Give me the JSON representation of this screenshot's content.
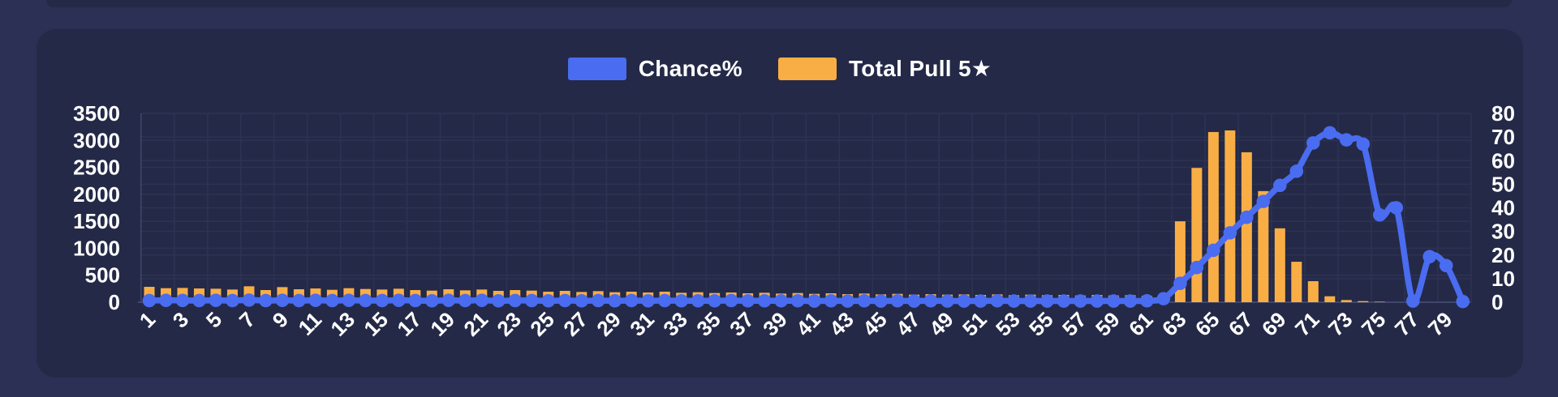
{
  "colors": {
    "page_background": "#2b3054",
    "card_background": "#242947",
    "grid_line": "#2d3253",
    "axis_line": "#41466b",
    "text": "#ffffff",
    "chance_blue": "#4a6cf0",
    "pull_orange": "#f9ae45"
  },
  "chart_data": {
    "type": "bar+line combo",
    "title": "",
    "legend_position": "top",
    "grid": "both axes, subtle",
    "x": [
      1,
      2,
      3,
      4,
      5,
      6,
      7,
      8,
      9,
      10,
      11,
      12,
      13,
      14,
      15,
      16,
      17,
      18,
      19,
      20,
      21,
      22,
      23,
      24,
      25,
      26,
      27,
      28,
      29,
      30,
      31,
      32,
      33,
      34,
      35,
      36,
      37,
      38,
      39,
      40,
      41,
      42,
      43,
      44,
      45,
      46,
      47,
      48,
      49,
      50,
      51,
      52,
      53,
      54,
      55,
      56,
      57,
      58,
      59,
      60,
      61,
      62,
      63,
      64,
      65,
      66,
      67,
      68,
      69,
      70,
      71,
      72,
      73,
      74,
      75,
      76,
      77,
      78,
      79,
      80
    ],
    "x_axis": {
      "tick_labels": [
        "1",
        "3",
        "5",
        "7",
        "9",
        "11",
        "13",
        "15",
        "17",
        "19",
        "21",
        "23",
        "25",
        "27",
        "29",
        "31",
        "33",
        "35",
        "37",
        "39",
        "41",
        "43",
        "45",
        "47",
        "49",
        "51",
        "53",
        "55",
        "57",
        "59",
        "61",
        "63",
        "65",
        "67",
        "69",
        "71",
        "73",
        "75",
        "77",
        "79"
      ],
      "label_rotation_deg": -45
    },
    "left_axis": {
      "min": 0,
      "max": 3500,
      "step": 500,
      "tick_labels": [
        "0",
        "500",
        "1000",
        "1500",
        "2000",
        "2500",
        "3000",
        "3500"
      ]
    },
    "right_axis": {
      "min": 0,
      "max": 80,
      "step": 10,
      "tick_labels": [
        "0",
        "10",
        "20",
        "30",
        "40",
        "50",
        "60",
        "70",
        "80"
      ]
    },
    "series": [
      {
        "name": "Chance%",
        "type": "line",
        "axis": "right",
        "color": "#4a6cf0",
        "values": [
          0.7,
          0.8,
          0.75,
          0.7,
          0.8,
          0.7,
          0.9,
          0.7,
          0.8,
          0.7,
          0.8,
          0.7,
          0.8,
          0.7,
          0.7,
          0.8,
          0.7,
          0.6,
          0.8,
          0.7,
          0.8,
          0.6,
          0.7,
          0.7,
          0.6,
          0.7,
          0.6,
          0.7,
          0.6,
          0.7,
          0.6,
          0.7,
          0.6,
          0.6,
          0.6,
          0.7,
          0.6,
          0.6,
          0.6,
          0.6,
          0.5,
          0.6,
          0.5,
          0.6,
          0.5,
          0.6,
          0.5,
          0.6,
          0.5,
          0.5,
          0.5,
          0.6,
          0.5,
          0.5,
          0.5,
          0.5,
          0.5,
          0.5,
          0.5,
          0.5,
          0.6,
          1.5,
          8,
          14.7,
          22,
          29.4,
          36,
          42.7,
          49.5,
          55.5,
          67.5,
          71.8,
          68.8,
          67,
          37,
          40,
          0.5,
          19.3,
          15.5,
          0.3
        ]
      },
      {
        "name": "Total Pull 5★",
        "type": "bar",
        "axis": "left",
        "color": "#f9ae45",
        "values": [
          285,
          260,
          265,
          255,
          250,
          235,
          295,
          225,
          280,
          240,
          255,
          230,
          260,
          245,
          235,
          250,
          225,
          215,
          240,
          220,
          235,
          210,
          225,
          215,
          195,
          210,
          190,
          205,
          185,
          195,
          180,
          195,
          175,
          185,
          170,
          180,
          165,
          175,
          160,
          170,
          155,
          165,
          150,
          160,
          145,
          155,
          140,
          150,
          140,
          145,
          135,
          145,
          130,
          140,
          130,
          135,
          125,
          135,
          125,
          130,
          120,
          125,
          1500,
          2490,
          3155,
          3185,
          2780,
          2060,
          1370,
          750,
          390,
          110,
          40,
          20,
          8,
          0,
          0,
          0,
          0,
          0
        ]
      }
    ]
  }
}
